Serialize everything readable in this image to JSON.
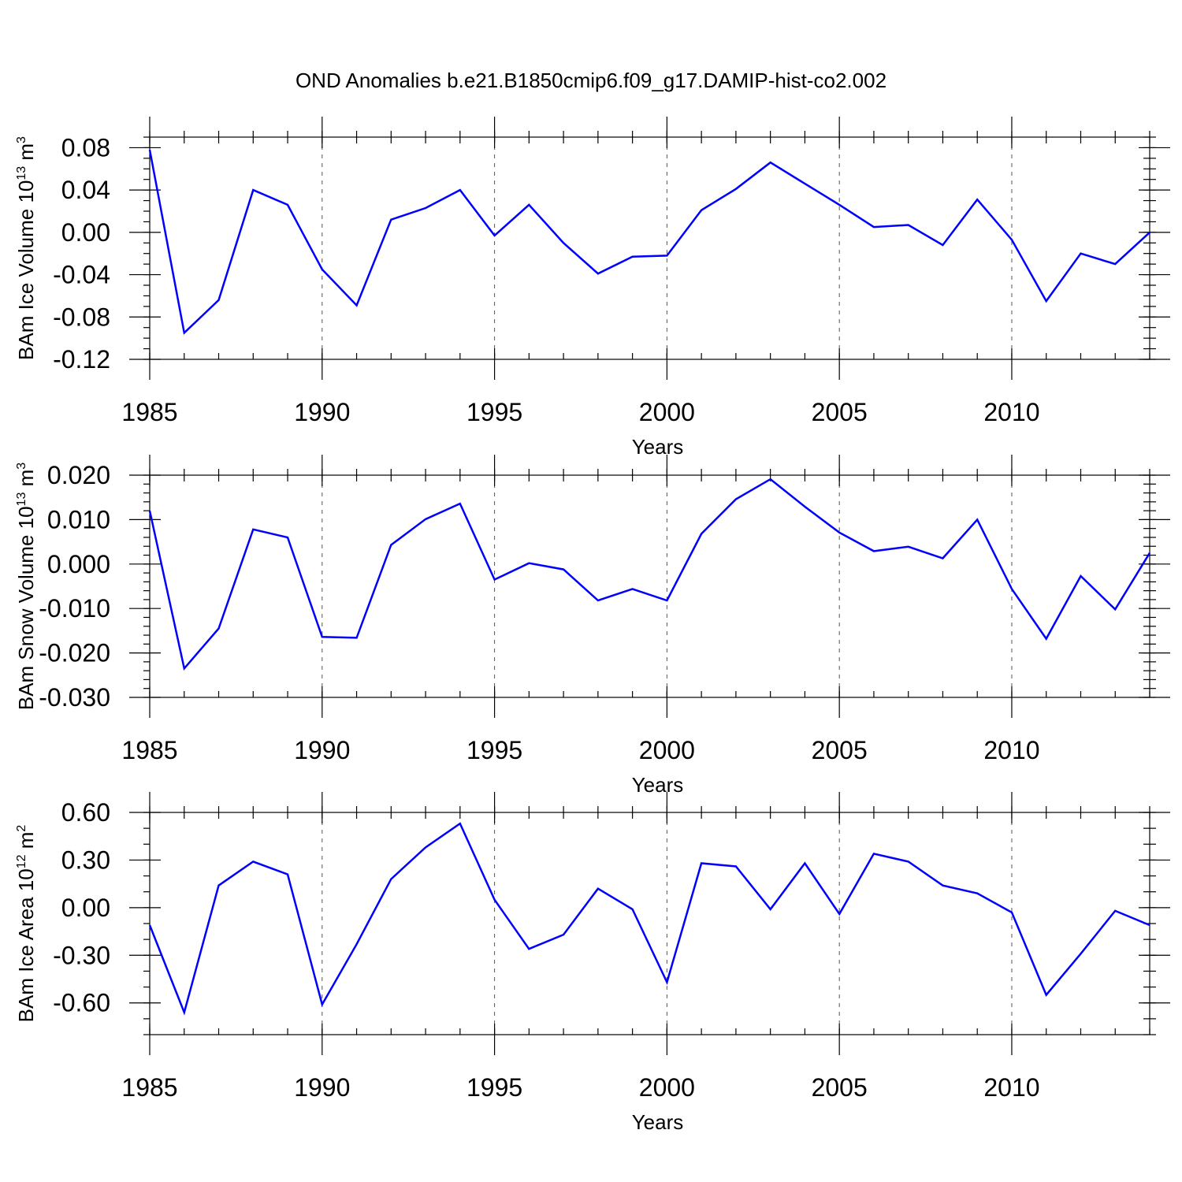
{
  "figure_title": "OND Anomalies b.e21.B1850cmip6.f09_g17.DAMIP-hist-co2.002",
  "colors": {
    "series": "#0000ff",
    "axis": "#000000",
    "grid": "#555555"
  },
  "chart_data": [
    {
      "type": "line",
      "xlabel": "Years",
      "ylabel_parts": {
        "main": "BAm Ice Volume 10",
        "sup1": "13",
        "mid": " m",
        "sup2": "3"
      },
      "xlim": [
        1985,
        2014
      ],
      "ylim": [
        -0.12,
        0.09
      ],
      "x_ticks": [
        1985,
        1990,
        1995,
        2000,
        2005,
        2010
      ],
      "x_tick_labels": [
        "1985",
        "1990",
        "1995",
        "2000",
        "2005",
        "2010"
      ],
      "y_ticks": [
        -0.12,
        -0.08,
        -0.04,
        0.0,
        0.04,
        0.08
      ],
      "y_tick_labels": [
        "-0.12",
        "-0.08",
        "-0.04",
        "0.00",
        "0.04",
        "0.08"
      ],
      "y_minor_step": 0.01,
      "x_minor_step": 1,
      "grid_x": true,
      "x": [
        1985,
        1986,
        1987,
        1988,
        1989,
        1990,
        1991,
        1992,
        1993,
        1994,
        1995,
        1996,
        1997,
        1998,
        1999,
        2000,
        2001,
        2002,
        2003,
        2004,
        2005,
        2006,
        2007,
        2008,
        2009,
        2010,
        2011,
        2012,
        2013,
        2014
      ],
      "values": [
        0.078,
        -0.095,
        -0.064,
        0.04,
        0.026,
        -0.035,
        -0.069,
        0.012,
        0.023,
        0.04,
        -0.003,
        0.026,
        -0.01,
        -0.039,
        -0.023,
        -0.022,
        0.021,
        0.041,
        0.066,
        0.046,
        0.026,
        0.005,
        0.007,
        -0.012,
        0.031,
        -0.007,
        -0.065,
        -0.02,
        -0.03,
        0.0
      ]
    },
    {
      "type": "line",
      "xlabel": "Years",
      "ylabel_parts": {
        "main": "BAm Snow Volume 10",
        "sup1": "13",
        "mid": " m",
        "sup2": "3"
      },
      "xlim": [
        1985,
        2014
      ],
      "ylim": [
        -0.03,
        0.02
      ],
      "x_ticks": [
        1985,
        1990,
        1995,
        2000,
        2005,
        2010
      ],
      "x_tick_labels": [
        "1985",
        "1990",
        "1995",
        "2000",
        "2005",
        "2010"
      ],
      "y_ticks": [
        -0.03,
        -0.02,
        -0.01,
        0.0,
        0.01,
        0.02
      ],
      "y_tick_labels": [
        "-0.030",
        "-0.020",
        "-0.010",
        "0.000",
        "0.010",
        "0.020"
      ],
      "y_minor_step": 0.002,
      "x_minor_step": 1,
      "grid_x": true,
      "x": [
        1985,
        1986,
        1987,
        1988,
        1989,
        1990,
        1991,
        1992,
        1993,
        1994,
        1995,
        1996,
        1997,
        1998,
        1999,
        2000,
        2001,
        2002,
        2003,
        2004,
        2005,
        2006,
        2007,
        2008,
        2009,
        2010,
        2011,
        2012,
        2013,
        2014
      ],
      "values": [
        0.012,
        -0.0235,
        -0.0145,
        0.0078,
        0.006,
        -0.0164,
        -0.0166,
        0.0043,
        0.0101,
        0.0136,
        -0.0035,
        0.0002,
        -0.0012,
        -0.0082,
        -0.0056,
        -0.0082,
        0.0068,
        0.0146,
        0.0191,
        0.0129,
        0.0071,
        0.0029,
        0.0039,
        0.0013,
        0.01,
        -0.0056,
        -0.0168,
        -0.0027,
        -0.0102,
        0.0025
      ]
    },
    {
      "type": "line",
      "xlabel": "Years",
      "ylabel_parts": {
        "main": "BAm Ice Area 10",
        "sup1": "12",
        "mid": " m",
        "sup2": "2"
      },
      "xlim": [
        1985,
        2014
      ],
      "ylim": [
        -0.8,
        0.6
      ],
      "x_ticks": [
        1985,
        1990,
        1995,
        2000,
        2005,
        2010
      ],
      "x_tick_labels": [
        "1985",
        "1990",
        "1995",
        "2000",
        "2005",
        "2010"
      ],
      "y_ticks": [
        -0.6,
        -0.3,
        0.0,
        0.3,
        0.6
      ],
      "y_tick_labels": [
        "-0.60",
        "-0.30",
        "0.00",
        "0.30",
        "0.60"
      ],
      "y_minor_step": 0.1,
      "x_minor_step": 1,
      "grid_x": true,
      "x": [
        1985,
        1986,
        1987,
        1988,
        1989,
        1990,
        1991,
        1992,
        1993,
        1994,
        1995,
        1996,
        1997,
        1998,
        1999,
        2000,
        2001,
        2002,
        2003,
        2004,
        2005,
        2006,
        2007,
        2008,
        2009,
        2010,
        2011,
        2012,
        2013,
        2014
      ],
      "values": [
        -0.11,
        -0.66,
        0.14,
        0.29,
        0.21,
        -0.61,
        -0.23,
        0.18,
        0.38,
        0.53,
        0.05,
        -0.26,
        -0.17,
        0.12,
        -0.01,
        -0.47,
        0.28,
        0.26,
        -0.01,
        0.28,
        -0.04,
        0.34,
        0.29,
        0.14,
        0.09,
        -0.03,
        -0.55,
        -0.29,
        -0.02,
        -0.11
      ]
    }
  ]
}
